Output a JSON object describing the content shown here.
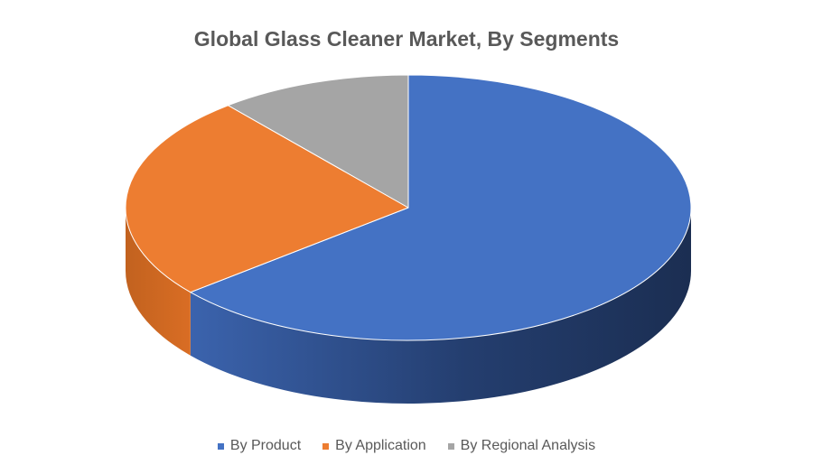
{
  "chart_data": {
    "type": "pie",
    "title": "Global Glass Cleaner Market, By Segments",
    "categories": [
      "By Product",
      "By Application",
      "By Regional Analysis"
    ],
    "values": [
      64,
      25,
      11
    ],
    "colors": [
      "#4472C4",
      "#ED7D31",
      "#A5A5A5"
    ],
    "legend_position": "bottom",
    "style": "3d"
  }
}
